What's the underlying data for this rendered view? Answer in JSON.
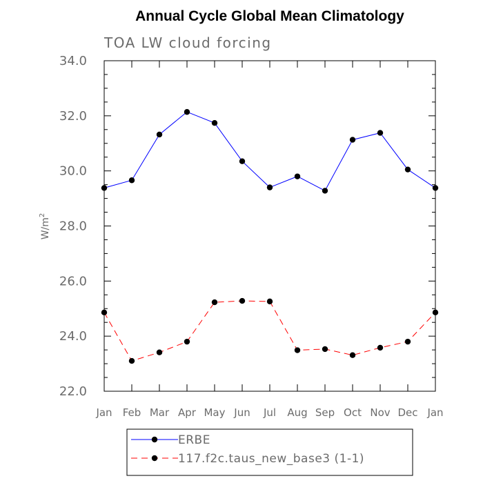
{
  "chart_data": {
    "type": "line",
    "title": "Annual Cycle Global Mean Climatology",
    "subtitle": "TOA LW cloud forcing",
    "ylabel": "W/m",
    "ylabel_superscript": "2",
    "xlabel": "",
    "ylim": [
      22.0,
      34.0
    ],
    "yticks": [
      "22.0",
      "24.0",
      "26.0",
      "28.0",
      "30.0",
      "32.0",
      "34.0"
    ],
    "categories": [
      "Jan",
      "Feb",
      "Mar",
      "Apr",
      "May",
      "Jun",
      "Jul",
      "Aug",
      "Sep",
      "Oct",
      "Nov",
      "Dec",
      "Jan"
    ],
    "series": [
      {
        "name": "ERBE",
        "color": "#0000ff",
        "line_style": "solid",
        "values": [
          29.38,
          29.66,
          31.32,
          32.14,
          31.74,
          30.35,
          29.4,
          29.8,
          29.28,
          31.13,
          31.38,
          30.05,
          29.38
        ]
      },
      {
        "name": "117.f2c.taus_new_base3 (1-1)",
        "color": "#ff0000",
        "line_style": "dashed",
        "values": [
          24.86,
          23.1,
          23.41,
          23.8,
          25.23,
          25.28,
          25.26,
          23.49,
          23.53,
          23.31,
          23.58,
          23.8,
          24.86
        ]
      }
    ],
    "legend_position": "bottom"
  }
}
